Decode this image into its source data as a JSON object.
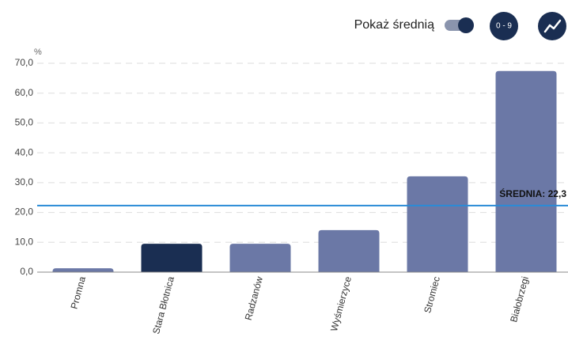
{
  "controls": {
    "toggle_label": "Pokaż średnią",
    "toggle_on": true,
    "range_button": "0 - 9"
  },
  "chart_data": {
    "type": "bar",
    "y_unit": "%",
    "categories": [
      "Promna",
      "Stara Błotnica",
      "Radzanów",
      "Wyśmierzyce",
      "Stromiec",
      "Białobrzegi"
    ],
    "values": [
      1.3,
      9.5,
      9.5,
      14.1,
      32.1,
      67.4
    ],
    "colors": [
      "#6b78a6",
      "#1a2e52",
      "#6b78a6",
      "#6b78a6",
      "#6b78a6",
      "#6b78a6"
    ],
    "ylim": [
      0,
      70
    ],
    "yticks": [
      {
        "value": 0,
        "label": "0,0"
      },
      {
        "value": 10,
        "label": "10,0"
      },
      {
        "value": 20,
        "label": "20,0"
      },
      {
        "value": 30,
        "label": "30,0"
      },
      {
        "value": 40,
        "label": "40,0"
      },
      {
        "value": 50,
        "label": "50,0"
      },
      {
        "value": 60,
        "label": "60,0"
      },
      {
        "value": 70,
        "label": "70,0"
      }
    ],
    "grid": true,
    "average": {
      "value": 22.3,
      "label": "ŚREDNIA: 22,3",
      "color": "#2a8bd6"
    }
  }
}
